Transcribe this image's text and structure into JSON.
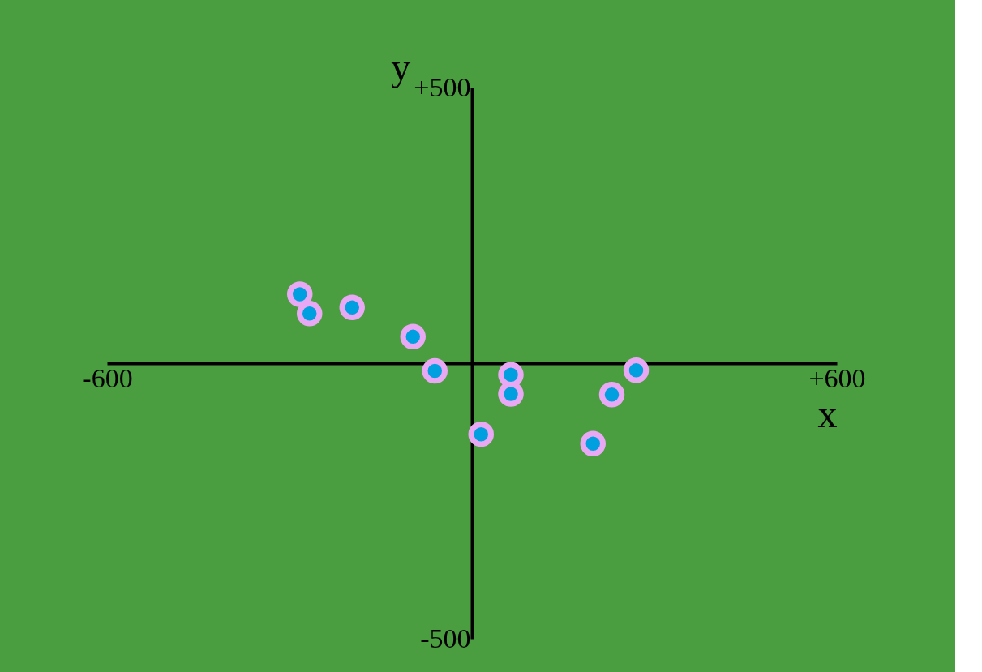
{
  "chart_data": {
    "type": "scatter",
    "xlabel": "x",
    "ylabel": "y",
    "xlim": [
      -600,
      600
    ],
    "ylim": [
      -500,
      500
    ],
    "xticks": [
      {
        "value": -600,
        "label": "-600"
      },
      {
        "value": 600,
        "label": "+600"
      }
    ],
    "yticks": [
      {
        "value": -500,
        "label": "-500"
      },
      {
        "value": 500,
        "label": "+500"
      }
    ],
    "grid": false,
    "marker": "circle",
    "series": [
      {
        "color": "#00a0e0",
        "x": [
          -283,
          -97,
          64,
          199,
          -267,
          -197,
          -61,
          64,
          15,
          230,
          270
        ],
        "values": [
          125,
          48,
          -56,
          -146,
          90,
          101,
          -14,
          -21,
          -129,
          -57,
          -13
        ]
      }
    ]
  }
}
